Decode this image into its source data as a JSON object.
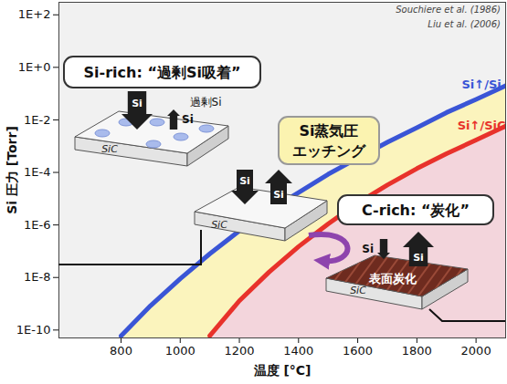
{
  "chart_data": {
    "type": "line",
    "x_label": "温度 [°C]",
    "y_label": "Si 圧力 [Torr]",
    "x": [
      800,
      900,
      1000,
      1100,
      1200,
      1300,
      1400,
      1500,
      1600,
      1700,
      1800,
      1900,
      2000,
      2100
    ],
    "series": [
      {
        "name": "Si↑/Si",
        "color": "#3a55d6",
        "values": [
          6e-11,
          8.5e-10,
          9e-09,
          8e-08,
          6e-07,
          3.5e-06,
          1.7e-05,
          8.5e-05,
          0.00035,
          0.0014,
          0.005,
          0.019,
          0.06,
          0.2
        ]
      },
      {
        "name": "Si↑/SiC",
        "color": "#e8322b",
        "values": [
          null,
          null,
          null,
          6e-11,
          1.3e-09,
          1.6e-08,
          1.5e-07,
          1.1e-06,
          6.8e-06,
          3.3e-05,
          0.00014,
          0.00052,
          0.0017,
          0.0058
        ]
      }
    ],
    "xlim": [
      590,
      2100
    ],
    "ylim": [
      5e-11,
      300
    ],
    "xticks": [
      800,
      1000,
      1200,
      1400,
      1600,
      1800,
      2000
    ],
    "yticks": [
      {
        "value": 100,
        "label": "1E+2"
      },
      {
        "value": 1,
        "label": "1E+0"
      },
      {
        "value": 0.01,
        "label": "1E-2"
      },
      {
        "value": 0.0001,
        "label": "1E-4"
      },
      {
        "value": 1e-06,
        "label": "1E-6"
      },
      {
        "value": 1e-08,
        "label": "1E-8"
      },
      {
        "value": 1e-10,
        "label": "1E-10"
      }
    ],
    "log": "y",
    "grid": false,
    "annotations": {
      "references": [
        "Souchiere et al. (1986)",
        "Liu et al. (2006)"
      ],
      "regions": [
        {
          "title": "Si-rich: “過剰Si吸着”",
          "surface": "SiC",
          "flux_in": "Si",
          "flux_out": "Si",
          "note": "過剰Si"
        },
        {
          "title": "Si蒸気圧\nエッチング",
          "surface": "SiC",
          "flux_in": "Si",
          "flux_out": "Si"
        },
        {
          "title": "C-rich: “炭化”",
          "surface": "SiC",
          "flux_in": "Si",
          "flux_out": "Si",
          "note": "表面炭化"
        }
      ]
    }
  }
}
